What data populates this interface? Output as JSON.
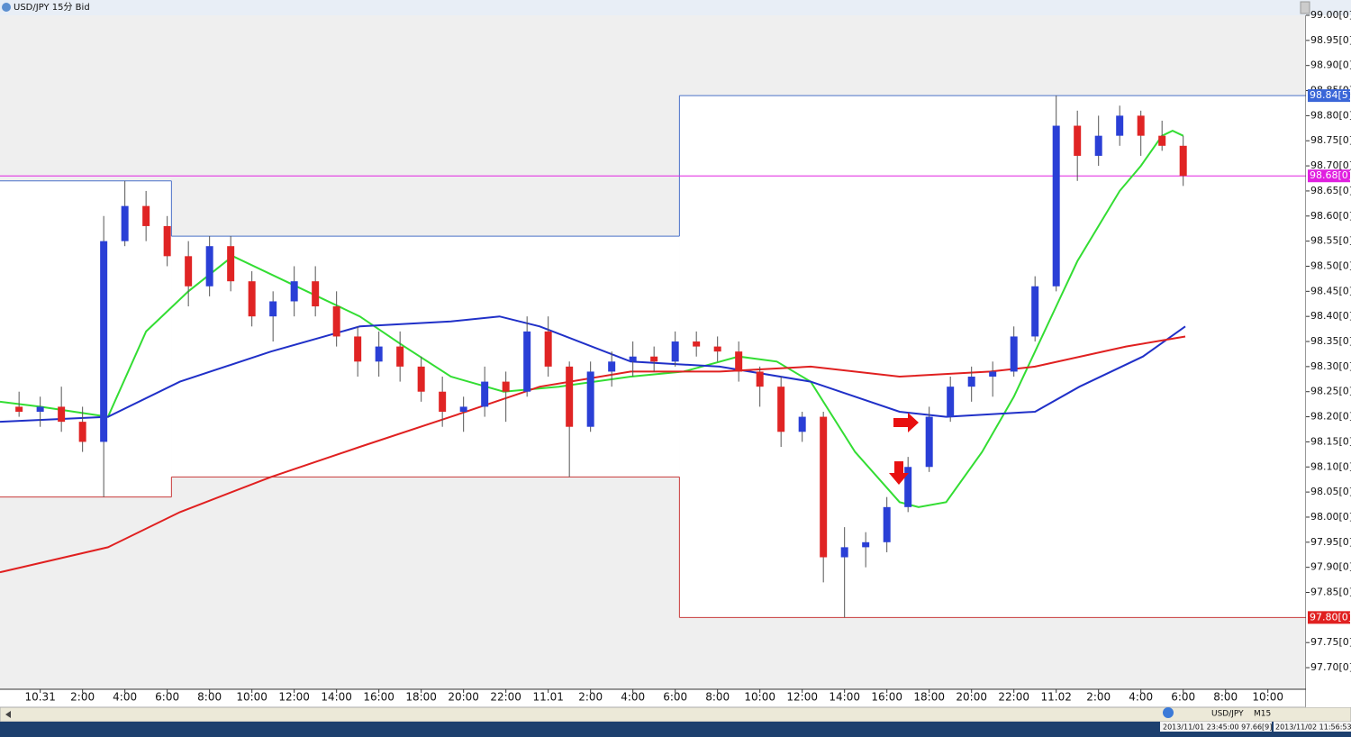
{
  "chart_data": {
    "type": "candlestick",
    "title": "USD/JPY 15分 Bid",
    "x": [
      -1,
      0,
      1,
      2,
      3,
      4,
      5,
      6,
      7,
      8,
      9,
      10,
      11,
      12,
      13,
      14,
      15,
      16,
      17,
      18,
      19,
      20,
      21,
      22,
      23,
      24,
      25,
      26,
      27,
      28,
      29,
      30,
      31,
      32,
      33,
      34,
      35,
      36,
      37,
      38,
      39,
      40,
      41,
      42,
      43,
      44,
      45,
      46,
      47,
      48,
      49,
      50,
      51,
      52,
      53,
      54
    ],
    "open": [
      98.22,
      98.21,
      98.22,
      98.19,
      98.15,
      98.55,
      98.62,
      98.58,
      98.52,
      98.46,
      98.54,
      98.47,
      98.4,
      98.43,
      98.47,
      98.42,
      98.36,
      98.31,
      98.34,
      98.3,
      98.25,
      98.21,
      98.22,
      98.27,
      98.25,
      98.37,
      98.3,
      98.18,
      98.29,
      98.31,
      98.32,
      98.31,
      98.35,
      98.34,
      98.33,
      98.29,
      98.26,
      98.17,
      98.2,
      97.92,
      97.94,
      97.95,
      98.02,
      98.1,
      98.2,
      98.26,
      98.28,
      98.29,
      98.36,
      98.46,
      98.78,
      98.72,
      98.76,
      98.8,
      98.76,
      98.74
    ],
    "high": [
      98.25,
      98.24,
      98.26,
      98.22,
      98.6,
      98.67,
      98.65,
      98.6,
      98.55,
      98.56,
      98.56,
      98.49,
      98.45,
      98.5,
      98.5,
      98.45,
      98.38,
      98.37,
      98.37,
      98.32,
      98.28,
      98.24,
      98.3,
      98.29,
      98.4,
      98.4,
      98.31,
      98.31,
      98.33,
      98.35,
      98.34,
      98.37,
      98.37,
      98.36,
      98.35,
      98.3,
      98.28,
      98.21,
      98.21,
      97.98,
      97.97,
      98.04,
      98.12,
      98.22,
      98.28,
      98.3,
      98.31,
      98.38,
      98.48,
      98.84,
      98.81,
      98.8,
      98.82,
      98.81,
      98.79,
      98.76
    ],
    "low": [
      98.2,
      98.18,
      98.17,
      98.13,
      98.04,
      98.54,
      98.55,
      98.5,
      98.42,
      98.44,
      98.45,
      98.38,
      98.35,
      98.4,
      98.4,
      98.34,
      98.28,
      98.28,
      98.27,
      98.23,
      98.18,
      98.17,
      98.2,
      98.19,
      98.24,
      98.28,
      98.08,
      98.17,
      98.26,
      98.28,
      98.29,
      98.3,
      98.32,
      98.31,
      98.27,
      98.22,
      98.14,
      98.15,
      97.87,
      97.8,
      97.9,
      97.93,
      98.01,
      98.09,
      98.19,
      98.23,
      98.24,
      98.28,
      98.35,
      98.45,
      98.67,
      98.7,
      98.74,
      98.72,
      98.73,
      98.66
    ],
    "close": [
      98.21,
      98.22,
      98.19,
      98.15,
      98.55,
      98.62,
      98.58,
      98.52,
      98.46,
      98.54,
      98.47,
      98.4,
      98.43,
      98.47,
      98.42,
      98.36,
      98.31,
      98.34,
      98.3,
      98.25,
      98.21,
      98.22,
      98.27,
      98.25,
      98.37,
      98.3,
      98.18,
      98.29,
      98.31,
      98.32,
      98.31,
      98.35,
      98.34,
      98.33,
      98.29,
      98.26,
      98.17,
      98.2,
      97.92,
      97.94,
      97.95,
      98.02,
      98.1,
      98.2,
      98.26,
      98.28,
      98.29,
      98.36,
      98.46,
      98.78,
      98.72,
      98.76,
      98.8,
      98.76,
      98.74,
      98.68
    ],
    "up_color": "#2a3fd6",
    "down_color": "#e02424",
    "series": [
      {
        "color": "#33dd33",
        "x": [
          -1.9,
          0,
          3.2,
          5,
          7,
          9.1,
          12.1,
          15.1,
          17.2,
          19.4,
          21.9,
          24.5,
          27.9,
          30.4,
          33,
          34.8,
          36.4,
          38.5,
          40.6,
          41.5,
          42.8,
          44.5,
          46,
          47,
          48,
          49,
          50,
          51,
          52,
          53,
          53.5,
          54
        ],
        "values": [
          98.23,
          98.22,
          98.2,
          98.37,
          98.45,
          98.52,
          98.46,
          98.4,
          98.34,
          98.28,
          98.25,
          98.26,
          98.28,
          98.29,
          98.32,
          98.31,
          98.27,
          98.13,
          98.03,
          98.02,
          98.03,
          98.13,
          98.24,
          98.33,
          98.42,
          98.51,
          98.58,
          98.65,
          98.7,
          98.76,
          98.77,
          98.76
        ]
      },
      {
        "color": "#2030c8",
        "x": [
          -1.9,
          3.2,
          6.6,
          10.9,
          15.1,
          19.4,
          21.7,
          23.6,
          27.9,
          32.1,
          36.4,
          40.6,
          42.8,
          47,
          49.1,
          52.1,
          54.1
        ],
        "values": [
          98.19,
          98.2,
          98.27,
          98.33,
          98.38,
          98.39,
          98.4,
          98.38,
          98.31,
          98.3,
          98.27,
          98.21,
          98.2,
          98.21,
          98.26,
          98.32,
          98.38
        ]
      },
      {
        "color": "#e02020",
        "x": [
          -1.9,
          3.2,
          6.6,
          10.9,
          15.1,
          19.4,
          23.6,
          27.9,
          32.1,
          36.4,
          40.6,
          44.9,
          47,
          51.3,
          54.1
        ],
        "values": [
          97.89,
          97.94,
          98.01,
          98.08,
          98.14,
          98.2,
          98.26,
          98.29,
          98.29,
          98.3,
          98.28,
          98.29,
          98.3,
          98.34,
          98.36
        ]
      }
    ],
    "day_ranges": [
      {
        "start": -1.9,
        "end": 6.2,
        "high": 98.67,
        "low": 98.04
      },
      {
        "start": 6.2,
        "end": 30.2,
        "high": 98.56,
        "low": 98.08
      },
      {
        "start": 30.2,
        "end": 59.8,
        "high": 98.84,
        "low": 97.8
      }
    ],
    "markers": [
      {
        "value": 98.84,
        "label": "98.84[5]",
        "color": "#3a66d8"
      },
      {
        "value": 98.68,
        "label": "98.68[0]",
        "color": "#e020e0"
      },
      {
        "value": 97.8,
        "label": "97.80[0]",
        "color": "#e02020"
      }
    ],
    "xlim": [
      -1.9,
      59.8
    ],
    "ylim": [
      97.657,
      99.0
    ],
    "yticks": [
      {
        "value": 99.0,
        "label": "99.00[0]"
      },
      {
        "value": 98.95,
        "label": "98.95[0]"
      },
      {
        "value": 98.9,
        "label": "98.90[0]"
      },
      {
        "value": 98.85,
        "label": "98.85[0]"
      },
      {
        "value": 98.8,
        "label": "98.80[0]"
      },
      {
        "value": 98.75,
        "label": "98.75[0]"
      },
      {
        "value": 98.7,
        "label": "98.70[0]"
      },
      {
        "value": 98.65,
        "label": "98.65[0]"
      },
      {
        "value": 98.6,
        "label": "98.60[0]"
      },
      {
        "value": 98.55,
        "label": "98.55[0]"
      },
      {
        "value": 98.5,
        "label": "98.50[0]"
      },
      {
        "value": 98.45,
        "label": "98.45[0]"
      },
      {
        "value": 98.4,
        "label": "98.40[0]"
      },
      {
        "value": 98.35,
        "label": "98.35[0]"
      },
      {
        "value": 98.3,
        "label": "98.30[0]"
      },
      {
        "value": 98.25,
        "label": "98.25[0]"
      },
      {
        "value": 98.2,
        "label": "98.20[0]"
      },
      {
        "value": 98.15,
        "label": "98.15[0]"
      },
      {
        "value": 98.1,
        "label": "98.10[0]"
      },
      {
        "value": 98.05,
        "label": "98.05[0]"
      },
      {
        "value": 98.0,
        "label": "98.00[0]"
      },
      {
        "value": 97.95,
        "label": "97.95[0]"
      },
      {
        "value": 97.9,
        "label": "97.90[0]"
      },
      {
        "value": 97.85,
        "label": "97.85[0]"
      },
      {
        "value": 97.75,
        "label": "97.75[0]"
      },
      {
        "value": 97.7,
        "label": "97.70[0]"
      }
    ],
    "xticks": [
      {
        "value": 0,
        "label": "10.31"
      },
      {
        "value": 2,
        "label": "2:00"
      },
      {
        "value": 4,
        "label": "4:00"
      },
      {
        "value": 6,
        "label": "6:00"
      },
      {
        "value": 8,
        "label": "8:00"
      },
      {
        "value": 10,
        "label": "10:00"
      },
      {
        "value": 12,
        "label": "12:00"
      },
      {
        "value": 14,
        "label": "14:00"
      },
      {
        "value": 16,
        "label": "16:00"
      },
      {
        "value": 18,
        "label": "18:00"
      },
      {
        "value": 20,
        "label": "20:00"
      },
      {
        "value": 22,
        "label": "22:00"
      },
      {
        "value": 24,
        "label": "11.01"
      },
      {
        "value": 26,
        "label": "2:00"
      },
      {
        "value": 28,
        "label": "4:00"
      },
      {
        "value": 30,
        "label": "6:00"
      },
      {
        "value": 32,
        "label": "8:00"
      },
      {
        "value": 34,
        "label": "10:00"
      },
      {
        "value": 36,
        "label": "12:00"
      },
      {
        "value": 38,
        "label": "14:00"
      },
      {
        "value": 40,
        "label": "16:00"
      },
      {
        "value": 42,
        "label": "18:00"
      },
      {
        "value": 44,
        "label": "20:00"
      },
      {
        "value": 46,
        "label": "22:00"
      },
      {
        "value": 48,
        "label": "11.02"
      },
      {
        "value": 50,
        "label": "2:00"
      },
      {
        "value": 52,
        "label": "4:00"
      },
      {
        "value": 54,
        "label": "6:00"
      },
      {
        "value": 56,
        "label": "8:00"
      },
      {
        "value": 58,
        "label": "10:00"
      }
    ],
    "toolbar": {
      "symbol": "USD/JPY",
      "period": "M15"
    },
    "status": {
      "cursor": "2013/11/01 23:45:00  97.66[9]",
      "clock": "2013/11/02 11:56:53"
    }
  }
}
